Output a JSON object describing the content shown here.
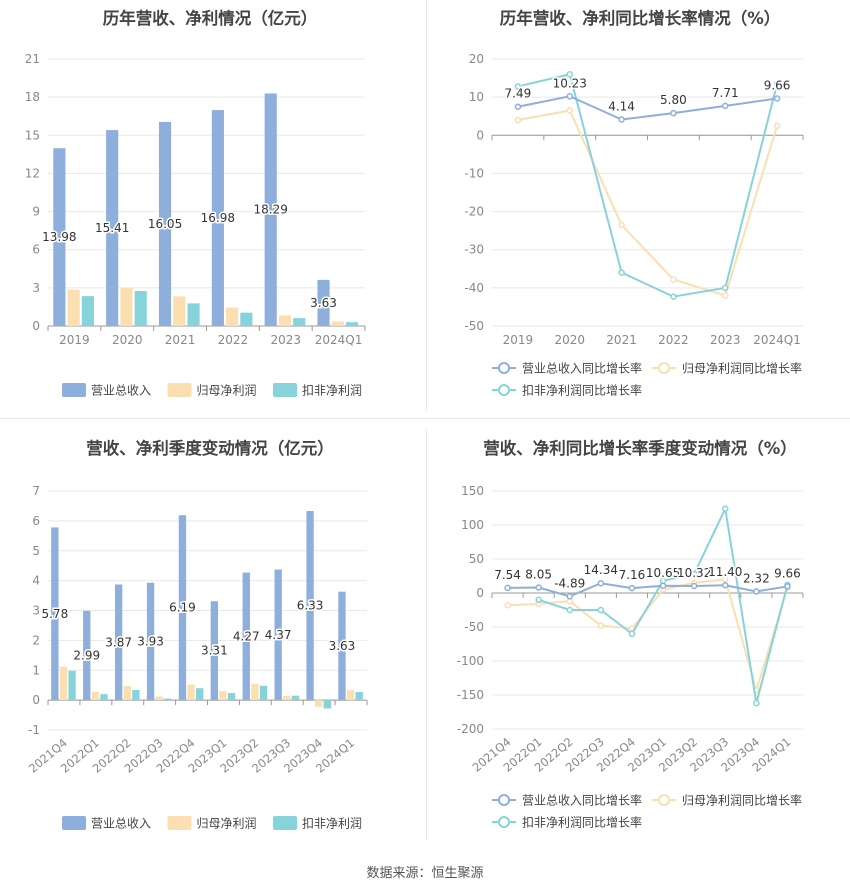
{
  "source": "数据来源：恒生聚源",
  "charts": {
    "annual_amount": {
      "title": "历年营收、净利情况（亿元）",
      "legend": [
        "营业总收入",
        "归母净利润",
        "扣非净利润"
      ]
    },
    "annual_growth": {
      "title": "历年营收、净利同比增长率情况（%）",
      "legend": [
        "营业总收入同比增长率",
        "归母净利润同比增长率",
        "扣非净利润同比增长率"
      ]
    },
    "quarter_amount": {
      "title": "营收、净利季度变动情况（亿元）",
      "legend": [
        "营业总收入",
        "归母净利润",
        "扣非净利润"
      ]
    },
    "quarter_growth": {
      "title": "营收、净利同比增长率季度变动情况（%）",
      "legend": [
        "营业总收入同比增长率",
        "归母净利润同比增长率",
        "扣非净利润同比增长率"
      ]
    }
  },
  "colors": {
    "revenue": "#8eaedb",
    "parent": "#fbdfb0",
    "deducted": "#87d3dc",
    "grid": "#e8e8e8",
    "axis": "#999999"
  },
  "chart_data": [
    {
      "type": "bar",
      "title": "历年营收、净利情况（亿元）",
      "categories": [
        "2019",
        "2020",
        "2021",
        "2022",
        "2023",
        "2024Q1"
      ],
      "ylim": [
        0,
        21
      ],
      "yticks": [
        0,
        3,
        6,
        9,
        12,
        15,
        18,
        21
      ],
      "series": [
        {
          "name": "营业总收入",
          "values": [
            13.98,
            15.41,
            16.05,
            16.98,
            18.29,
            3.63
          ],
          "labels": [
            "13.98",
            "15.41",
            "16.05",
            "16.98",
            "18.29",
            "3.63"
          ]
        },
        {
          "name": "归母净利润",
          "values": [
            2.85,
            3.03,
            2.33,
            1.45,
            0.83,
            0.35
          ]
        },
        {
          "name": "扣非净利润",
          "values": [
            2.35,
            2.75,
            1.78,
            1.05,
            0.62,
            0.3
          ]
        }
      ],
      "legend_position": "bottom"
    },
    {
      "type": "line",
      "title": "历年营收、净利同比增长率情况（%）",
      "categories": [
        "2019",
        "2020",
        "2021",
        "2022",
        "2023",
        "2024Q1"
      ],
      "ylim": [
        -50,
        20
      ],
      "yticks": [
        -50,
        -40,
        -30,
        -20,
        -10,
        0,
        10,
        20
      ],
      "series": [
        {
          "name": "营业总收入同比增长率",
          "values": [
            7.49,
            10.23,
            4.14,
            5.8,
            7.71,
            9.66
          ],
          "labels": [
            "7.49",
            "10.23",
            "4.14",
            "5.80",
            "7.71",
            "9.66"
          ]
        },
        {
          "name": "归母净利润同比增长率",
          "values": [
            4.0,
            6.5,
            -23.5,
            -37.8,
            -42.0,
            2.5
          ]
        },
        {
          "name": "扣非净利润同比增长率",
          "values": [
            12.8,
            16.0,
            -36.0,
            -42.3,
            -40.0,
            13.5
          ]
        }
      ],
      "legend_position": "bottom"
    },
    {
      "type": "bar",
      "title": "营收、净利季度变动情况（亿元）",
      "categories": [
        "2021Q4",
        "2022Q1",
        "2022Q2",
        "2022Q3",
        "2022Q4",
        "2023Q1",
        "2023Q2",
        "2023Q3",
        "2023Q4",
        "2024Q1"
      ],
      "ylim": [
        -1,
        7
      ],
      "yticks": [
        -1,
        0,
        1,
        2,
        3,
        4,
        5,
        6,
        7
      ],
      "series": [
        {
          "name": "营业总收入",
          "values": [
            5.78,
            2.99,
            3.87,
            3.93,
            6.19,
            3.31,
            4.27,
            4.37,
            6.33,
            3.63
          ],
          "labels": [
            "5.78",
            "2.99",
            "3.87",
            "3.93",
            "6.19",
            "3.31",
            "4.27",
            "4.37",
            "6.33",
            "3.63"
          ]
        },
        {
          "name": "归母净利润",
          "values": [
            1.12,
            0.28,
            0.48,
            0.12,
            0.52,
            0.3,
            0.55,
            0.14,
            -0.22,
            0.33
          ]
        },
        {
          "name": "扣非净利润",
          "values": [
            0.98,
            0.2,
            0.34,
            0.05,
            0.4,
            0.24,
            0.48,
            0.15,
            -0.28,
            0.27
          ]
        }
      ],
      "legend_position": "bottom"
    },
    {
      "type": "line",
      "title": "营收、净利同比增长率季度变动情况（%）",
      "categories": [
        "2021Q4",
        "2022Q1",
        "2022Q2",
        "2022Q3",
        "2022Q4",
        "2023Q1",
        "2023Q2",
        "2023Q3",
        "2023Q4",
        "2024Q1"
      ],
      "ylim": [
        -200,
        150
      ],
      "yticks": [
        -200,
        -150,
        -100,
        -50,
        0,
        50,
        100,
        150
      ],
      "series": [
        {
          "name": "营业总收入同比增长率",
          "values": [
            7.54,
            8.05,
            -4.89,
            14.34,
            7.16,
            10.65,
            10.32,
            11.4,
            2.32,
            9.66
          ],
          "labels": [
            "7.54",
            "8.05",
            "-4.89",
            "14.34",
            "7.16",
            "10.65",
            "10.32",
            "11.40",
            "2.32",
            "9.66"
          ]
        },
        {
          "name": "归母净利润同比增长率",
          "values": [
            -18,
            -16,
            -12,
            -48,
            -52,
            5,
            15,
            20,
            -143,
            8
          ]
        },
        {
          "name": "扣非净利润同比增长率",
          "values": [
            null,
            -10,
            -25,
            -25,
            -60,
            18,
            28,
            124,
            -162,
            12
          ]
        }
      ],
      "legend_position": "bottom"
    }
  ]
}
